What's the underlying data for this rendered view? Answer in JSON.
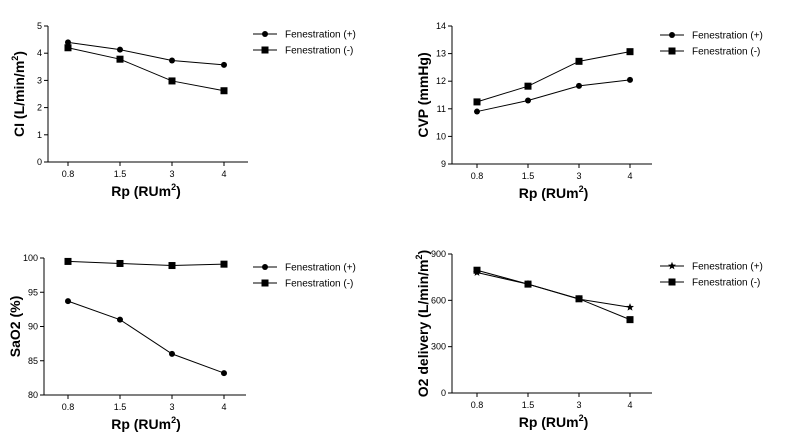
{
  "chart_data": [
    {
      "type": "line",
      "categories": [
        "0.8",
        "1.5",
        "3",
        "4"
      ],
      "series": [
        {
          "name": "Fenestration (+)",
          "marker": "circle",
          "values": [
            4.4,
            4.13,
            3.73,
            3.57
          ]
        },
        {
          "name": "Fenestration (-)",
          "marker": "square",
          "values": [
            4.2,
            3.78,
            2.98,
            2.62
          ]
        }
      ],
      "ylabel": "CI (L/min/m",
      "ylabel_sup": "2",
      "ylabel_end": ")",
      "xlabel": "Rp (RUm",
      "xlabel_sup": "2",
      "xlabel_end": ")",
      "ylim": [
        0,
        5
      ],
      "yticks": [
        "0",
        "1",
        "2",
        "3",
        "4",
        "5"
      ],
      "grid": false,
      "legend": "top-right"
    },
    {
      "type": "line",
      "categories": [
        "0.8",
        "1.5",
        "3",
        "4"
      ],
      "series": [
        {
          "name": "Fenestration (+)",
          "marker": "circle",
          "values": [
            10.9,
            11.3,
            11.83,
            12.05
          ]
        },
        {
          "name": "Fenestration (-)",
          "marker": "square",
          "values": [
            11.25,
            11.82,
            12.72,
            13.07
          ]
        }
      ],
      "ylabel": "CVP (mmHg)",
      "ylabel_sup": "",
      "ylabel_end": "",
      "xlabel": "Rp (RUm",
      "xlabel_sup": "2",
      "xlabel_end": ")",
      "ylim": [
        9,
        14
      ],
      "yticks": [
        "9",
        "10",
        "11",
        "12",
        "13",
        "14"
      ],
      "grid": false,
      "legend": "top-right"
    },
    {
      "type": "line",
      "categories": [
        "0.8",
        "1.5",
        "3",
        "4"
      ],
      "series": [
        {
          "name": "Fenestration (+)",
          "marker": "circle",
          "values": [
            93.7,
            91.0,
            86.0,
            83.2
          ]
        },
        {
          "name": "Fenestration (-)",
          "marker": "square",
          "values": [
            99.5,
            99.2,
            98.9,
            99.1
          ]
        }
      ],
      "ylabel": "SaO2 (%)",
      "ylabel_sup": "",
      "ylabel_end": "",
      "xlabel": "Rp (RUm",
      "xlabel_sup": "2",
      "xlabel_end": ")",
      "ylim": [
        80,
        100
      ],
      "yticks": [
        "80",
        "85",
        "90",
        "95",
        "100"
      ],
      "grid": false,
      "legend": "top-right"
    },
    {
      "type": "line",
      "categories": [
        "0.8",
        "1.5",
        "3",
        "4"
      ],
      "series": [
        {
          "name": "Fenestration (+)",
          "marker": "star",
          "values": [
            780,
            705,
            608,
            555
          ]
        },
        {
          "name": "Fenestration (-)",
          "marker": "square",
          "values": [
            795,
            705,
            610,
            475
          ]
        }
      ],
      "ylabel": "O2 delivery (L/min/m",
      "ylabel_sup": "2",
      "ylabel_end": ")",
      "xlabel": "Rp (RUm",
      "xlabel_sup": "2",
      "xlabel_end": ")",
      "ylim": [
        0,
        900
      ],
      "yticks": [
        "0",
        "300",
        "600",
        "900"
      ],
      "grid": false,
      "legend": "top-right"
    }
  ]
}
